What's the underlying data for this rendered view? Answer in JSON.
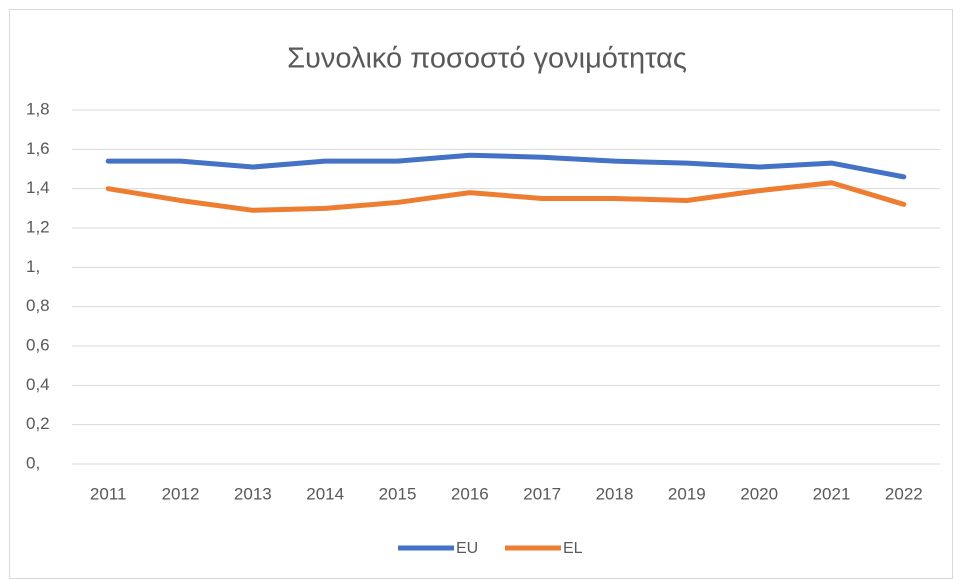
{
  "chart_data": {
    "type": "line",
    "title": "Συνολικό ποσοστό γονιμότητας",
    "categories": [
      "2011",
      "2012",
      "2013",
      "2014",
      "2015",
      "2016",
      "2017",
      "2018",
      "2019",
      "2020",
      "2021",
      "2022"
    ],
    "series": [
      {
        "name": "EU",
        "color": "#4472c4",
        "values": [
          1.54,
          1.54,
          1.51,
          1.54,
          1.54,
          1.57,
          1.56,
          1.54,
          1.53,
          1.51,
          1.53,
          1.46
        ]
      },
      {
        "name": "EL",
        "color": "#ed7d31",
        "values": [
          1.4,
          1.34,
          1.29,
          1.3,
          1.33,
          1.38,
          1.35,
          1.35,
          1.34,
          1.39,
          1.43,
          1.32
        ]
      }
    ],
    "ylim": [
      0,
      1.8
    ],
    "yticks": [
      {
        "value": 0,
        "label": "0,"
      },
      {
        "value": 0.2,
        "label": "0,2"
      },
      {
        "value": 0.4,
        "label": "0,4"
      },
      {
        "value": 0.6,
        "label": "0,6"
      },
      {
        "value": 0.8,
        "label": "0,8"
      },
      {
        "value": 1,
        "label": "1,"
      },
      {
        "value": 1.2,
        "label": "1,2"
      },
      {
        "value": 1.4,
        "label": "1,4"
      },
      {
        "value": 1.6,
        "label": "1,6"
      },
      {
        "value": 1.8,
        "label": "1,8"
      }
    ],
    "grid": true,
    "legend": "bottom"
  }
}
